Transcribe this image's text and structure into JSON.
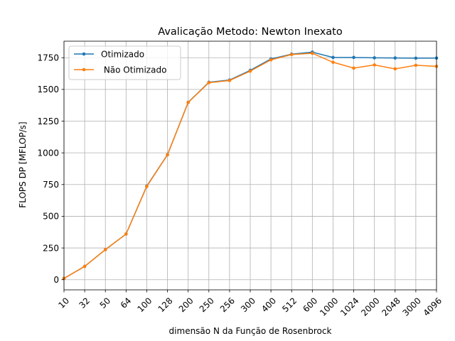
{
  "chart_data": {
    "type": "line",
    "title": "Avalicação Metodo:  Newton Inexato",
    "xlabel": "dimensão N da Função de Rosenbrock",
    "ylabel": "FLOPS DP [MFLOP/s]",
    "categories": [
      "10",
      "32",
      "50",
      "64",
      "100",
      "128",
      "200",
      "250",
      "256",
      "300",
      "400",
      "512",
      "600",
      "1000",
      "1024",
      "2000",
      "2048",
      "3000",
      "4096"
    ],
    "ylim": [
      -80,
      1880
    ],
    "yticks": [
      0,
      250,
      500,
      750,
      1000,
      1250,
      1500,
      1750
    ],
    "grid": true,
    "legend_position": "top-left",
    "series": [
      {
        "name": "Otimizado",
        "color": "#1f77b4",
        "values": [
          10,
          105,
          237,
          360,
          738,
          985,
          1398,
          1556,
          1574,
          1650,
          1740,
          1778,
          1794,
          1752,
          1752,
          1749,
          1748,
          1746,
          1747
        ]
      },
      {
        "name": " Não Otimizado",
        "color": "#ff7f0e",
        "values": [
          10,
          105,
          237,
          360,
          735,
          984,
          1397,
          1553,
          1570,
          1644,
          1733,
          1775,
          1785,
          1714,
          1668,
          1693,
          1662,
          1690,
          1682
        ]
      }
    ]
  }
}
